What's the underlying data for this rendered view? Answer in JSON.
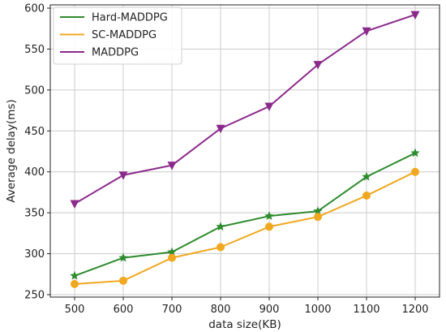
{
  "chart_data": {
    "type": "line",
    "title": "",
    "xlabel": "data size(KB)",
    "ylabel": "Average delay(ms)",
    "categories": [
      500,
      600,
      700,
      800,
      900,
      1000,
      1100,
      1200
    ],
    "xlim": [
      450,
      1250
    ],
    "ylim": [
      247,
      604
    ],
    "yticks": [
      250,
      300,
      350,
      400,
      450,
      500,
      550,
      600
    ],
    "grid": true,
    "legend": "top-left",
    "series": [
      {
        "name": "Hard-MADDPG",
        "color": "#2e8b2e",
        "marker": "star",
        "values": [
          273,
          295,
          302,
          333,
          346,
          352,
          394,
          423
        ]
      },
      {
        "name": "SC-MADDPG",
        "color": "#f0a820",
        "marker": "circle",
        "values": [
          263,
          267,
          295,
          308,
          333,
          345,
          371,
          400
        ]
      },
      {
        "name": "MADDPG",
        "color": "#8b2a8b",
        "marker": "triangle-down",
        "values": [
          361,
          396,
          408,
          453,
          480,
          531,
          572,
          592
        ]
      }
    ]
  }
}
